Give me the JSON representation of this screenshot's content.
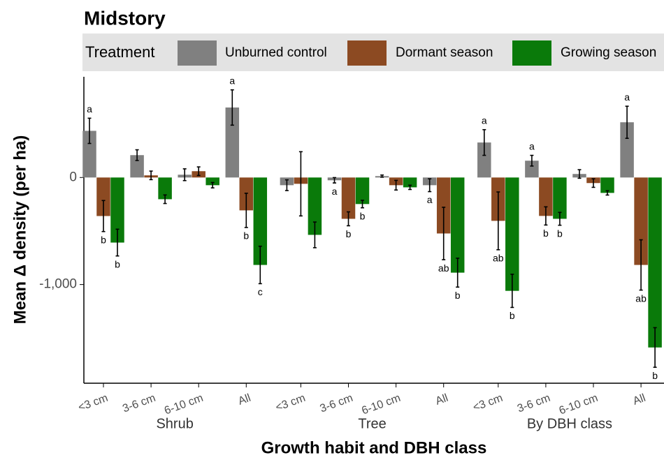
{
  "chart_data": {
    "type": "bar",
    "title": "Midstory",
    "x_label": "Growth habit and DBH class",
    "y_label": "Mean Δ density (per ha)",
    "legend_title": "Treatment",
    "legend_position": "top",
    "categories": [
      "<3 cm",
      "3-6 cm",
      "6-10 cm",
      "All",
      "<3 cm",
      "3-6 cm",
      "6-10 cm",
      "All",
      "<3 cm",
      "3-6 cm",
      "6-10 cm",
      "All"
    ],
    "groups": [
      {
        "name": "Shrub",
        "size": 4
      },
      {
        "name": "Tree",
        "size": 4
      },
      {
        "name": "By DBH class",
        "size": 4
      }
    ],
    "series": [
      {
        "name": "Unburned control",
        "color": "#808080",
        "values": [
          436,
          209,
          26,
          654,
          -72,
          -26,
          13,
          -72,
          327,
          157,
          33,
          516
        ],
        "errors": [
          118,
          50,
          55,
          165,
          50,
          25,
          10,
          60,
          120,
          50,
          40,
          150
        ],
        "labels": [
          "a",
          null,
          null,
          "a",
          null,
          "a",
          null,
          "a",
          "a",
          "a",
          null,
          "a"
        ]
      },
      {
        "name": "Dormant season",
        "color": "#8c4a22",
        "values": [
          -360,
          20,
          59,
          -307,
          -59,
          -386,
          -72,
          -523,
          -405,
          -359,
          -52,
          -817
        ],
        "errors": [
          145,
          40,
          40,
          160,
          300,
          65,
          45,
          245,
          270,
          85,
          40,
          235
        ],
        "labels": [
          "b",
          null,
          null,
          "b",
          null,
          "b",
          null,
          "ab",
          "ab",
          "b",
          null,
          "ab"
        ]
      },
      {
        "name": "Growing season",
        "color": "#0a7a0a",
        "values": [
          -608,
          -203,
          -72,
          -817,
          -536,
          -248,
          -92,
          -889,
          -1059,
          -386,
          -144,
          -1588
        ],
        "errors": [
          125,
          40,
          25,
          175,
          120,
          35,
          20,
          135,
          155,
          60,
          20,
          185
        ],
        "labels": [
          "b",
          null,
          null,
          "c",
          null,
          "b",
          null,
          "b",
          "b",
          "b",
          null,
          "b"
        ]
      }
    ],
    "ylim": [
      -1922,
      941
    ],
    "yticks": [
      {
        "value": -1000,
        "label": "-1,000"
      },
      0
    ],
    "grid": false
  }
}
